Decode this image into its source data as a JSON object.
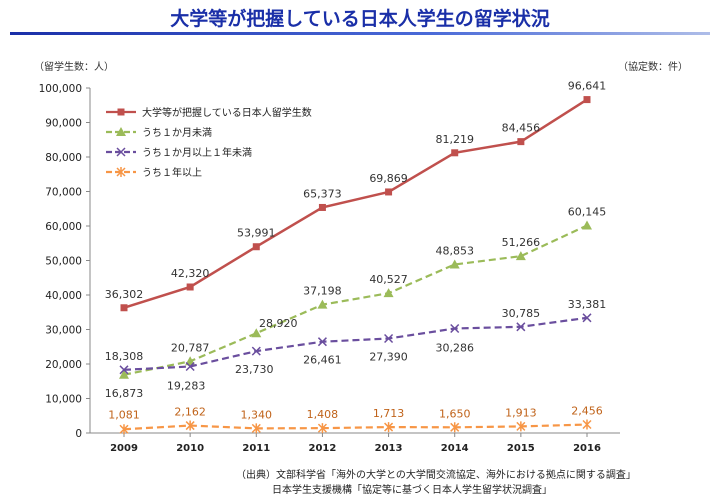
{
  "title": "大学等が把握している日本人学生の留学状況",
  "source": {
    "line1": "（出典）文部科学省「海外の大学との大学間交流協定、海外における拠点に関する調査」",
    "line2": "日本学生支援機構「協定等に基づく日本人学生留学状況調査」"
  },
  "chart_data": {
    "type": "line",
    "ylabel": "（留学生数：人）",
    "ylabel_right": "（協定数：件）",
    "x": [
      "2009",
      "2010",
      "2011",
      "2012",
      "2013",
      "2014",
      "2015",
      "2016"
    ],
    "ylim": [
      0,
      100000
    ],
    "yticks": [
      0,
      10000,
      20000,
      30000,
      40000,
      50000,
      60000,
      70000,
      80000,
      90000,
      100000
    ],
    "ytick_labels": [
      "0",
      "10,000",
      "20,000",
      "30,000",
      "40,000",
      "50,000",
      "60,000",
      "70,000",
      "80,000",
      "90,000",
      "100,000"
    ],
    "grid": false,
    "legend_position": "top-left",
    "series": [
      {
        "name": "大学等が把握している日本人留学生数",
        "color": "#c0504d",
        "marker": "square",
        "dash": "solid",
        "values": [
          36302,
          42320,
          53991,
          65373,
          69869,
          81219,
          84456,
          96641
        ],
        "labels": [
          "36,302",
          "42,320",
          "53,991",
          "65,373",
          "69,869",
          "81,219",
          "84,456",
          "96,641"
        ]
      },
      {
        "name": "うち１か月未満",
        "color": "#9bbb59",
        "marker": "triangle",
        "dash": "dashed",
        "values": [
          16873,
          20787,
          28920,
          37198,
          40527,
          48853,
          51266,
          60145
        ],
        "labels": [
          "16,873",
          "20,787",
          "28,920",
          "37,198",
          "40,527",
          "48,853",
          "51,266",
          "60,145"
        ]
      },
      {
        "name": "うち１か月以上１年未満",
        "color": "#6a4e9e",
        "marker": "x",
        "dash": "dashed",
        "values": [
          18308,
          19283,
          23730,
          26461,
          27390,
          30286,
          30785,
          33381
        ],
        "labels": [
          "18,308",
          "19,283",
          "23,730",
          "26,461",
          "27,390",
          "30,286",
          "30,785",
          "33,381"
        ]
      },
      {
        "name": "うち１年以上",
        "color": "#f79646",
        "marker": "star",
        "dash": "dashed",
        "values": [
          1081,
          2162,
          1340,
          1408,
          1713,
          1650,
          1913,
          2456
        ],
        "labels": [
          "1,081",
          "2,162",
          "1,340",
          "1,408",
          "1,713",
          "1,650",
          "1,913",
          "2,456"
        ]
      }
    ]
  }
}
